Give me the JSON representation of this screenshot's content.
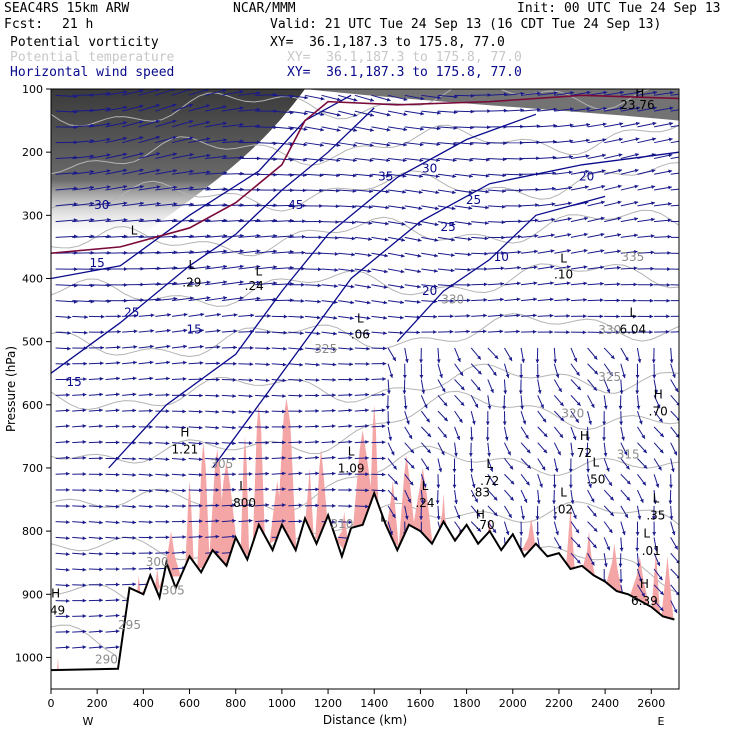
{
  "header": {
    "model": "SEAC4RS 15km ARW",
    "org": "NCAR/MMM",
    "init": "Init: 00 UTC Tue 24 Sep 13",
    "fcst_label": "Fcst:",
    "fcst_value": "21 h",
    "valid": "Valid: 21 UTC Tue 24 Sep 13 (16 CDT Tue 24 Sep 13)",
    "fields": [
      {
        "name": "Potential vorticity",
        "xy": "XY=  36.1,187.3 to 175.8, 77.0",
        "color": "#000000"
      },
      {
        "name": "Potential temperature",
        "xy": "XY=  36.1,187.3 to 175.8, 77.0",
        "color": "#c8c8c8"
      },
      {
        "name": "Horizontal wind speed",
        "xy": "XY=  36.1,187.3 to 175.8, 77.0",
        "color": "#0a0a8c"
      }
    ]
  },
  "colors": {
    "pv_shade": "#444444",
    "moist_fill": "#f4a6a6",
    "theta": "#b4b4b4",
    "wind": "#1a1a8c",
    "terrain": "#000000",
    "tropopause": "#7a0a3a"
  },
  "chart_data": {
    "type": "cross-section",
    "xlabel": "Distance (km)",
    "ylabel": "Pressure (hPa)",
    "x_ticks": [
      "0",
      "200",
      "400",
      "600",
      "800",
      "1000",
      "1200",
      "1400",
      "1600",
      "1800",
      "2000",
      "2200",
      "2400",
      "2600"
    ],
    "x_tick_values": [
      0,
      200,
      400,
      600,
      800,
      1000,
      1200,
      1400,
      1600,
      1800,
      2000,
      2200,
      2400,
      2600
    ],
    "y_ticks": [
      "100",
      "200",
      "300",
      "400",
      "500",
      "600",
      "700",
      "800",
      "900",
      "1000"
    ],
    "y_tick_values": [
      100,
      200,
      300,
      400,
      500,
      600,
      700,
      800,
      900,
      1000
    ],
    "xlim": [
      0,
      2720
    ],
    "ylim": [
      100,
      1050
    ],
    "end_labels": {
      "left": "W",
      "right": "E"
    },
    "terrain": {
      "x": [
        0,
        290,
        340,
        400,
        430,
        470,
        500,
        540,
        600,
        650,
        700,
        760,
        800,
        850,
        900,
        960,
        1000,
        1060,
        1100,
        1150,
        1200,
        1260,
        1300,
        1350,
        1400,
        1450,
        1500,
        1550,
        1600,
        1650,
        1700,
        1750,
        1800,
        1850,
        1900,
        1950,
        2000,
        2050,
        2100,
        2150,
        2200,
        2250,
        2300,
        2350,
        2400,
        2450,
        2500,
        2550,
        2600,
        2650,
        2700
      ],
      "p": [
        1020,
        1018,
        890,
        900,
        870,
        905,
        850,
        890,
        840,
        865,
        830,
        855,
        810,
        845,
        790,
        830,
        790,
        830,
        780,
        820,
        775,
        840,
        795,
        790,
        740,
        790,
        830,
        790,
        800,
        820,
        785,
        815,
        790,
        820,
        800,
        830,
        805,
        840,
        820,
        840,
        835,
        860,
        855,
        870,
        880,
        895,
        900,
        910,
        920,
        935,
        940
      ]
    },
    "moist_peaks_x": [
      30,
      380,
      460,
      520,
      600,
      660,
      720,
      760,
      840,
      900,
      980,
      1020,
      1120,
      1170,
      1270,
      1350,
      1400,
      1480,
      1540,
      1610,
      1700,
      1770,
      1900,
      2080,
      2250,
      2330,
      2440,
      2550,
      2620,
      2670
    ],
    "moist_peaks_p": [
      1000,
      870,
      860,
      800,
      720,
      660,
      670,
      690,
      650,
      600,
      720,
      590,
      700,
      670,
      770,
      640,
      600,
      720,
      680,
      700,
      740,
      790,
      780,
      780,
      760,
      800,
      820,
      840,
      830,
      840
    ],
    "pv_labels": [
      {
        "text": "L",
        "x": 360,
        "p": 330
      },
      {
        "text": "L",
        "x": 900,
        "p": 395
      },
      {
        "text": ".24",
        "x": 880,
        "p": 418
      },
      {
        "text": "L",
        "x": 610,
        "p": 385
      },
      {
        "text": ".29",
        "x": 610,
        "p": 413
      },
      {
        "text": "L",
        "x": 1340,
        "p": 470
      },
      {
        "text": ".06",
        "x": 1340,
        "p": 495
      },
      {
        "text": "L",
        "x": 2220,
        "p": 375
      },
      {
        "text": ".10",
        "x": 2220,
        "p": 400
      },
      {
        "text": "L",
        "x": 2520,
        "p": 460
      },
      {
        "text": "6.04",
        "x": 2520,
        "p": 487
      },
      {
        "text": "H",
        "x": 2630,
        "p": 590
      },
      {
        "text": ".70",
        "x": 2630,
        "p": 617
      },
      {
        "text": "H",
        "x": 580,
        "p": 650
      },
      {
        "text": "1.21",
        "x": 580,
        "p": 677
      },
      {
        "text": "H",
        "x": 2310,
        "p": 656
      },
      {
        "text": "72",
        "x": 2310,
        "p": 683
      },
      {
        "text": "L",
        "x": 2360,
        "p": 698
      },
      {
        "text": ".50",
        "x": 2360,
        "p": 725
      },
      {
        "text": "L",
        "x": 1300,
        "p": 680
      },
      {
        "text": "1.09",
        "x": 1300,
        "p": 707
      },
      {
        "text": "L",
        "x": 1900,
        "p": 700
      },
      {
        "text": ".72",
        "x": 1900,
        "p": 727
      },
      {
        "text": ".83",
        "x": 1860,
        "p": 745
      },
      {
        "text": "L",
        "x": 830,
        "p": 735
      },
      {
        "text": ".800",
        "x": 830,
        "p": 762
      },
      {
        "text": "L",
        "x": 1620,
        "p": 735
      },
      {
        "text": ".24",
        "x": 1620,
        "p": 762
      },
      {
        "text": "L",
        "x": 2220,
        "p": 745
      },
      {
        "text": ".02",
        "x": 2220,
        "p": 772
      },
      {
        "text": "L",
        "x": 2620,
        "p": 755
      },
      {
        "text": ".35",
        "x": 2620,
        "p": 782
      },
      {
        "text": "L",
        "x": 1440,
        "p": 785
      },
      {
        "text": "H",
        "x": 1860,
        "p": 780
      },
      {
        "text": ".70",
        "x": 1880,
        "p": 797
      },
      {
        "text": "L",
        "x": 2580,
        "p": 810
      },
      {
        "text": ".01",
        "x": 2600,
        "p": 838
      },
      {
        "text": "H",
        "x": 2570,
        "p": 890
      },
      {
        "text": "6.39",
        "x": 2570,
        "p": 917
      },
      {
        "text": "H",
        "x": 20,
        "p": 905
      },
      {
        "text": ".49",
        "x": 20,
        "p": 932
      },
      {
        "text": "H",
        "x": 2550,
        "p": 112
      },
      {
        "text": "23.76",
        "x": 2540,
        "p": 132
      }
    ],
    "speed_labels": [
      {
        "text": "45",
        "x": 1060,
        "p": 290
      },
      {
        "text": "35",
        "x": 1450,
        "p": 245
      },
      {
        "text": "30",
        "x": 1640,
        "p": 232
      },
      {
        "text": "25",
        "x": 1830,
        "p": 282
      },
      {
        "text": "25",
        "x": 1720,
        "p": 325
      },
      {
        "text": "10",
        "x": 1950,
        "p": 372
      },
      {
        "text": "20",
        "x": 1640,
        "p": 426
      },
      {
        "text": "20",
        "x": 2320,
        "p": 245
      },
      {
        "text": "25",
        "x": 350,
        "p": 460
      },
      {
        "text": "15",
        "x": 200,
        "p": 382
      },
      {
        "text": "15",
        "x": 620,
        "p": 487
      },
      {
        "text": "30",
        "x": 220,
        "p": 290
      },
      {
        "text": "15",
        "x": 100,
        "p": 570
      }
    ],
    "theta_labels": [
      {
        "text": "335",
        "x": 2520,
        "p": 372
      },
      {
        "text": "330",
        "x": 1740,
        "p": 440
      },
      {
        "text": "330",
        "x": 2420,
        "p": 488
      },
      {
        "text": "325",
        "x": 1190,
        "p": 518
      },
      {
        "text": "325",
        "x": 2420,
        "p": 562
      },
      {
        "text": "320",
        "x": 2260,
        "p": 620
      },
      {
        "text": "315",
        "x": 2500,
        "p": 685
      },
      {
        "text": "310",
        "x": 1260,
        "p": 795
      },
      {
        "text": "305",
        "x": 740,
        "p": 700
      },
      {
        "text": "300",
        "x": 460,
        "p": 855
      },
      {
        "text": "305",
        "x": 530,
        "p": 900
      },
      {
        "text": "295",
        "x": 340,
        "p": 955
      },
      {
        "text": "290",
        "x": 240,
        "p": 1010
      }
    ],
    "axis_scale": "pressure (linear)",
    "grid": false
  }
}
